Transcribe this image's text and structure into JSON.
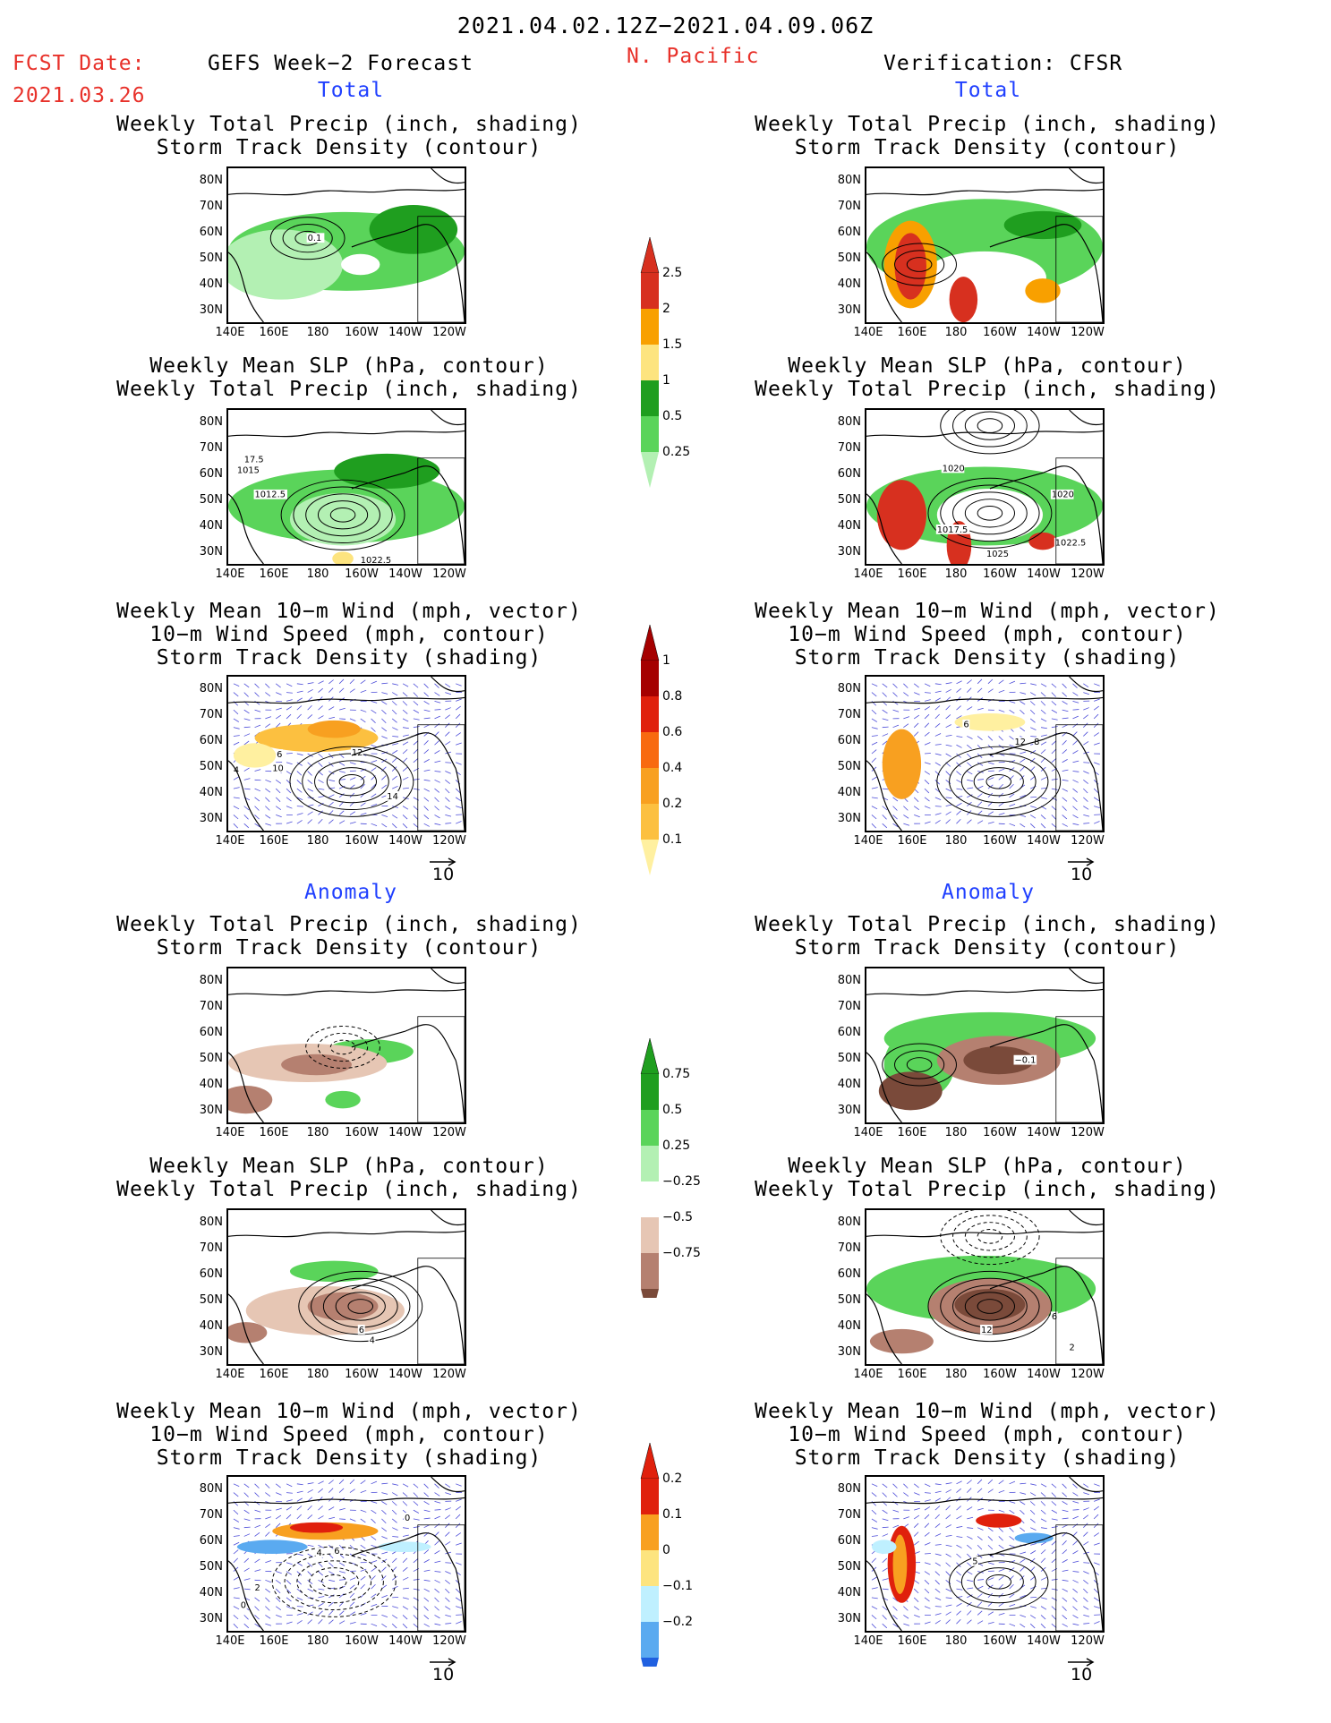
{
  "header": {
    "period": "2021.04.02.12Z−2021.04.09.06Z",
    "fcst_label": "FCST Date:",
    "fcst_date": "2021.03.26",
    "model": "GEFS Week−2 Forecast",
    "region": "N. Pacific",
    "verification": "Verification: CFSR",
    "total_label": "Total",
    "anomaly_label": "Anomaly"
  },
  "titles": {
    "precip_track": [
      "Weekly Total Precip (inch, shading)",
      "Storm Track Density (contour)"
    ],
    "slp_precip": [
      "Weekly Mean SLP (hPa, contour)",
      "Weekly Total Precip (inch, shading)"
    ],
    "wind": [
      "Weekly Mean 10−m Wind (mph, vector)",
      "10−m Wind Speed (mph, contour)",
      "Storm Track Density (shading)"
    ]
  },
  "axes": {
    "lat_ticks": [
      "80N",
      "70N",
      "60N",
      "50N",
      "40N",
      "30N"
    ],
    "lon_ticks": [
      "140E",
      "160E",
      "180",
      "160W",
      "140W",
      "120W"
    ],
    "vector_scale": "10"
  },
  "colorbars": {
    "precip_total": {
      "labels": [
        "2.5",
        "2",
        "1.5",
        "1",
        "0.5",
        "0.25"
      ],
      "colors": [
        "#d7301f",
        "#f8a000",
        "#fde47f",
        "#1f9e1f",
        "#5ad45a",
        "#b3f0b3"
      ]
    },
    "track_total": {
      "labels": [
        "1",
        "0.8",
        "0.6",
        "0.4",
        "0.2",
        "0.1"
      ],
      "colors": [
        "#a50000",
        "#e0200c",
        "#f86a10",
        "#f8a020",
        "#fcc040",
        "#fff0a0"
      ]
    },
    "precip_anom": {
      "labels": [
        "0.75",
        "0.5",
        "0.25",
        "−0.25",
        "−0.5",
        "−0.75"
      ],
      "colors": [
        "#1f9e1f",
        "#5ad45a",
        "#b3f0b3",
        "#ffffff",
        "#e6c6b4",
        "#b58070",
        "#7a4a3a"
      ]
    },
    "track_anom": {
      "labels": [
        "0.2",
        "0.1",
        "0",
        "−0.1",
        "−0.2"
      ],
      "colors": [
        "#e0200c",
        "#f8a020",
        "#fde47f",
        "#bff0ff",
        "#5aaaf0",
        "#2060e0"
      ]
    }
  },
  "panel_labels": {
    "p1": "0.1",
    "p2": [
      "17.5",
      "1015",
      "1012.5",
      "1022.5"
    ],
    "p3": [
      "6",
      "10",
      "12",
      "14",
      "4"
    ],
    "v2": [
      "1020",
      "1020",
      "1017.5",
      "1025",
      "1022.5"
    ],
    "v3": [
      "6",
      "12",
      "8"
    ],
    "va1": "−0.1",
    "pa2": [
      "6",
      "4"
    ],
    "va2": [
      "12",
      "6",
      "2"
    ],
    "pa3": [
      "0",
      "2",
      "4",
      "6",
      "0"
    ],
    "va3": [
      "5"
    ]
  },
  "chart_data": [
    {
      "type": "heatmap",
      "title": "Weekly Total Precip (inch, shading) / Storm Track Density (contour)",
      "column": "GEFS Week−2 Forecast",
      "section": "Total",
      "lat_ticks": [
        "80N",
        "70N",
        "60N",
        "50N",
        "40N",
        "30N"
      ],
      "lon_ticks": [
        "140E",
        "160E",
        "180",
        "160W",
        "140W",
        "120W"
      ],
      "contour_labels": [
        "0.1"
      ]
    },
    {
      "type": "heatmap",
      "title": "Weekly Mean SLP (hPa, contour) / Weekly Total Precip (inch, shading)",
      "column": "GEFS Week−2 Forecast",
      "section": "Total",
      "contour_labels": [
        "17.5",
        "1015",
        "1012.5",
        "1022.5"
      ]
    },
    {
      "type": "heatmap",
      "title": "Weekly Mean 10−m Wind (mph, vector) / 10−m Wind Speed (mph, contour) / Storm Track Density (shading)",
      "column": "GEFS Week−2 Forecast",
      "section": "Total",
      "contour_labels": [
        "6",
        "10",
        "12",
        "14",
        "4"
      ]
    },
    {
      "type": "heatmap",
      "title": "Weekly Total Precip (inch, shading) / Storm Track Density (contour)",
      "column": "Verification: CFSR",
      "section": "Total"
    },
    {
      "type": "heatmap",
      "title": "Weekly Mean SLP (hPa, contour) / Weekly Total Precip (inch, shading)",
      "column": "Verification: CFSR",
      "section": "Total",
      "contour_labels": [
        "1020",
        "1020",
        "1017.5",
        "1025",
        "1022.5"
      ]
    },
    {
      "type": "heatmap",
      "title": "Weekly Mean 10−m Wind (mph, vector) / 10−m Wind Speed (mph, contour) / Storm Track Density (shading)",
      "column": "Verification: CFSR",
      "section": "Total",
      "contour_labels": [
        "6",
        "12",
        "8"
      ]
    },
    {
      "type": "heatmap",
      "title": "Weekly Total Precip (inch, shading) / Storm Track Density (contour)",
      "column": "GEFS Week−2 Forecast",
      "section": "Anomaly"
    },
    {
      "type": "heatmap",
      "title": "Weekly Mean SLP (hPa, contour) / Weekly Total Precip (inch, shading)",
      "column": "GEFS Week−2 Forecast",
      "section": "Anomaly",
      "contour_labels": [
        "6",
        "4"
      ]
    },
    {
      "type": "heatmap",
      "title": "Weekly Mean 10−m Wind (mph, vector) / 10−m Wind Speed (mph, contour) / Storm Track Density (shading)",
      "column": "GEFS Week−2 Forecast",
      "section": "Anomaly",
      "contour_labels": [
        "0",
        "2",
        "4",
        "6",
        "0"
      ]
    },
    {
      "type": "heatmap",
      "title": "Weekly Total Precip (inch, shading) / Storm Track Density (contour)",
      "column": "Verification: CFSR",
      "section": "Anomaly",
      "contour_labels": [
        "−0.1"
      ]
    },
    {
      "type": "heatmap",
      "title": "Weekly Mean SLP (hPa, contour) / Weekly Total Precip (inch, shading)",
      "column": "Verification: CFSR",
      "section": "Anomaly",
      "contour_labels": [
        "12",
        "6",
        "2"
      ]
    },
    {
      "type": "heatmap",
      "title": "Weekly Mean 10−m Wind (mph, vector) / 10−m Wind Speed (mph, contour) / Storm Track Density (shading)",
      "column": "Verification: CFSR",
      "section": "Anomaly",
      "contour_labels": [
        "5"
      ]
    }
  ]
}
